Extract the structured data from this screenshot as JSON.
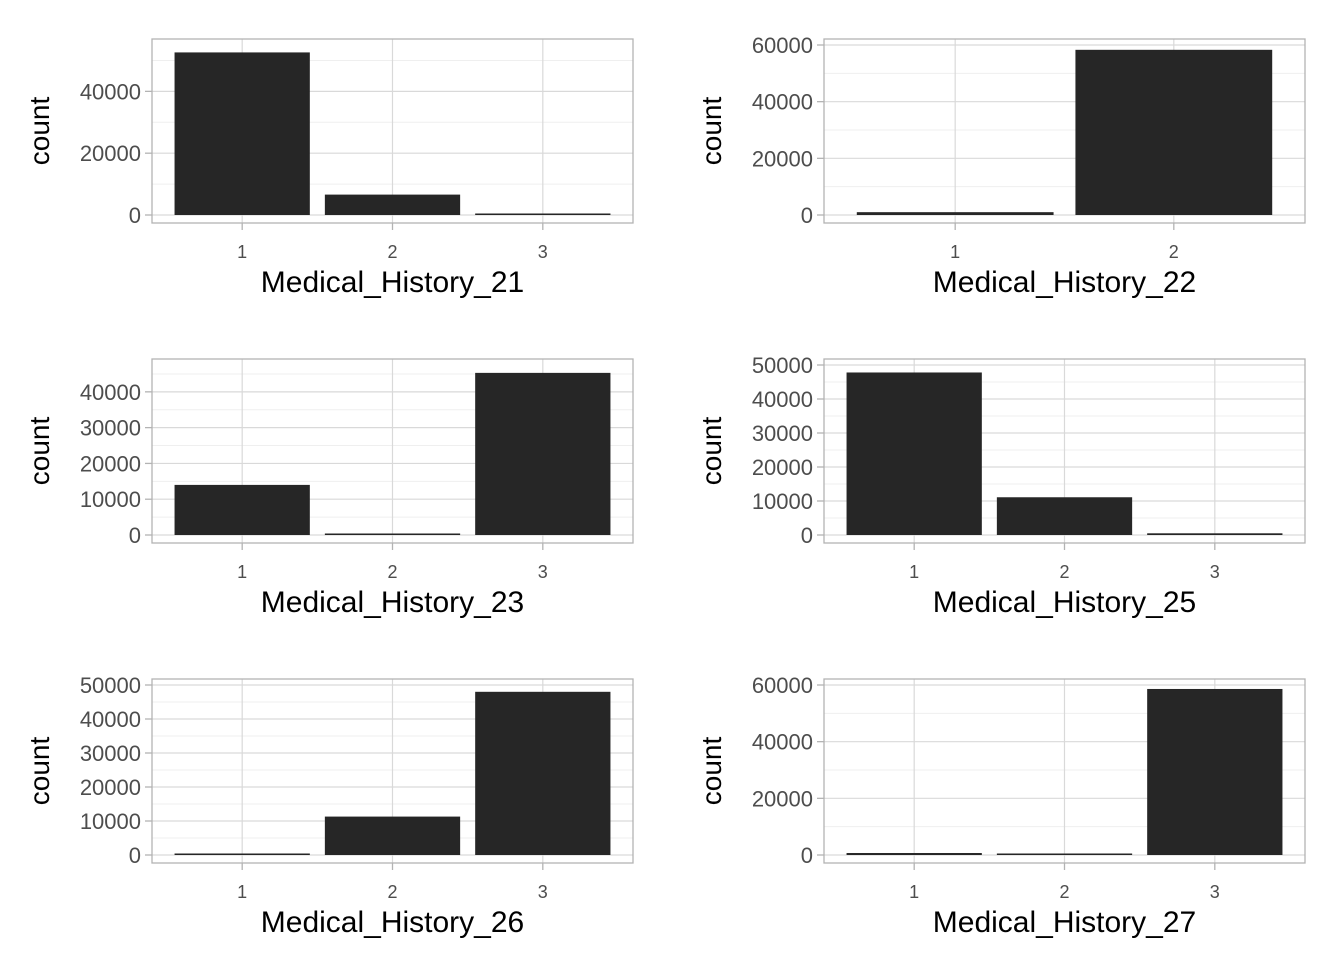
{
  "colors": {
    "bar": "#262626",
    "panel_border": "#b3b3b3",
    "grid_major": "#d9d9d9",
    "grid_minor": "#efefef",
    "tick_text": "#4d4d4d",
    "axis_title": "#000000"
  },
  "chart_data": [
    {
      "type": "bar",
      "categories": [
        "1",
        "2",
        "3"
      ],
      "values": [
        52600,
        6600,
        60
      ],
      "xlabel": "Medical_History_21",
      "ylabel": "count",
      "ylim": [
        0,
        55000
      ],
      "yticks": [
        0,
        20000,
        40000
      ],
      "ytick_labels": [
        "0",
        "20000",
        "40000"
      ],
      "grid": true
    },
    {
      "type": "bar",
      "categories": [
        "1",
        "2"
      ],
      "values": [
        1000,
        58300
      ],
      "xlabel": "Medical_History_22",
      "ylabel": "count",
      "ylim": [
        0,
        60000
      ],
      "yticks": [
        0,
        20000,
        40000,
        60000
      ],
      "ytick_labels": [
        "0",
        "20000",
        "40000",
        "60000"
      ],
      "grid": true
    },
    {
      "type": "bar",
      "categories": [
        "1",
        "2",
        "3"
      ],
      "values": [
        14000,
        150,
        45300
      ],
      "xlabel": "Medical_History_23",
      "ylabel": "count",
      "ylim": [
        0,
        47500
      ],
      "yticks": [
        0,
        10000,
        20000,
        30000,
        40000
      ],
      "ytick_labels": [
        "0",
        "10000",
        "20000",
        "30000",
        "40000"
      ],
      "grid": true
    },
    {
      "type": "bar",
      "categories": [
        "1",
        "2",
        "3"
      ],
      "values": [
        47800,
        11100,
        500
      ],
      "xlabel": "Medical_History_25",
      "ylabel": "count",
      "ylim": [
        0,
        50000
      ],
      "yticks": [
        0,
        10000,
        20000,
        30000,
        40000,
        50000
      ],
      "ytick_labels": [
        "0",
        "10000",
        "20000",
        "30000",
        "40000",
        "50000"
      ],
      "grid": true
    },
    {
      "type": "bar",
      "categories": [
        "1",
        "2",
        "3"
      ],
      "values": [
        60,
        11300,
        48000
      ],
      "xlabel": "Medical_History_26",
      "ylabel": "count",
      "ylim": [
        0,
        50000
      ],
      "yticks": [
        0,
        10000,
        20000,
        30000,
        40000,
        50000
      ],
      "ytick_labels": [
        "0",
        "10000",
        "20000",
        "30000",
        "40000",
        "50000"
      ],
      "grid": true
    },
    {
      "type": "bar",
      "categories": [
        "1",
        "2",
        "3"
      ],
      "values": [
        700,
        20,
        58600
      ],
      "xlabel": "Medical_History_27",
      "ylabel": "count",
      "ylim": [
        0,
        60000
      ],
      "yticks": [
        0,
        20000,
        40000,
        60000
      ],
      "ytick_labels": [
        "0",
        "20000",
        "40000",
        "60000"
      ],
      "grid": true
    }
  ]
}
